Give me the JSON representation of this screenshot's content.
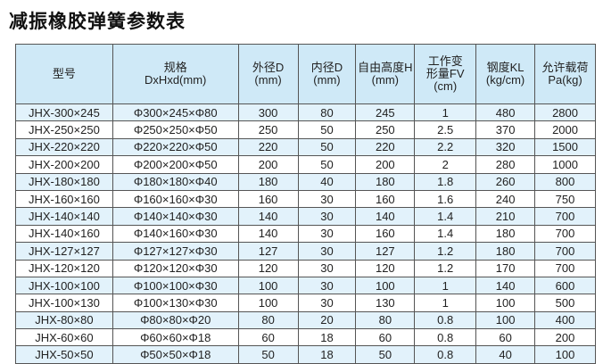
{
  "title": "减振橡胶弹簧参数表",
  "headers": [
    [
      "型号"
    ],
    [
      "规格",
      "DxHxd(mm)"
    ],
    [
      "外径D",
      "(mm)"
    ],
    [
      "内径D",
      "(mm)"
    ],
    [
      "自由高度H",
      "(mm)"
    ],
    [
      "工作变",
      "形量FV",
      "(cm)"
    ],
    [
      "钢度KL",
      "(kg/cm)"
    ],
    [
      "允许载荷",
      "Pa(kg)"
    ]
  ],
  "rows": [
    [
      "JHX-300×245",
      "Φ300×245×Φ80",
      "300",
      "80",
      "245",
      "1",
      "480",
      "2800"
    ],
    [
      "JHX-250×250",
      "Φ250×250×Φ50",
      "250",
      "50",
      "250",
      "2.5",
      "370",
      "2000"
    ],
    [
      "JHX-220×220",
      "Φ220×220×Φ50",
      "220",
      "50",
      "220",
      "2.2",
      "320",
      "1500"
    ],
    [
      "JHX-200×200",
      "Φ200×200×Φ50",
      "200",
      "50",
      "200",
      "2",
      "280",
      "1000"
    ],
    [
      "JHX-180×180",
      "Φ180×180×Φ40",
      "180",
      "40",
      "180",
      "1.8",
      "260",
      "800"
    ],
    [
      "JHX-160×160",
      "Φ160×160×Φ30",
      "160",
      "30",
      "160",
      "1.6",
      "240",
      "750"
    ],
    [
      "JHX-140×140",
      "Φ140×140×Φ30",
      "140",
      "30",
      "140",
      "1.4",
      "210",
      "700"
    ],
    [
      "JHX-140×160",
      "Φ140×160×Φ30",
      "140",
      "30",
      "160",
      "1.4",
      "180",
      "700"
    ],
    [
      "JHX-127×127",
      "Φ127×127×Φ30",
      "127",
      "30",
      "127",
      "1.2",
      "180",
      "700"
    ],
    [
      "JHX-120×120",
      "Φ120×120×Φ30",
      "120",
      "30",
      "120",
      "1.2",
      "170",
      "700"
    ],
    [
      "JHX-100×100",
      "Φ100×100×Φ30",
      "100",
      "30",
      "100",
      "1",
      "140",
      "600"
    ],
    [
      "JHX-100×130",
      "Φ100×130×Φ30",
      "100",
      "30",
      "130",
      "1",
      "100",
      "500"
    ],
    [
      "JHX-80×80",
      "Φ80×80×Φ20",
      "80",
      "20",
      "80",
      "0.8",
      "100",
      "400"
    ],
    [
      "JHX-60×60",
      "Φ60×60×Φ18",
      "60",
      "18",
      "60",
      "0.8",
      "60",
      "200"
    ],
    [
      "JHX-50×50",
      "Φ50×50×Φ18",
      "50",
      "18",
      "50",
      "0.8",
      "40",
      "100"
    ]
  ]
}
